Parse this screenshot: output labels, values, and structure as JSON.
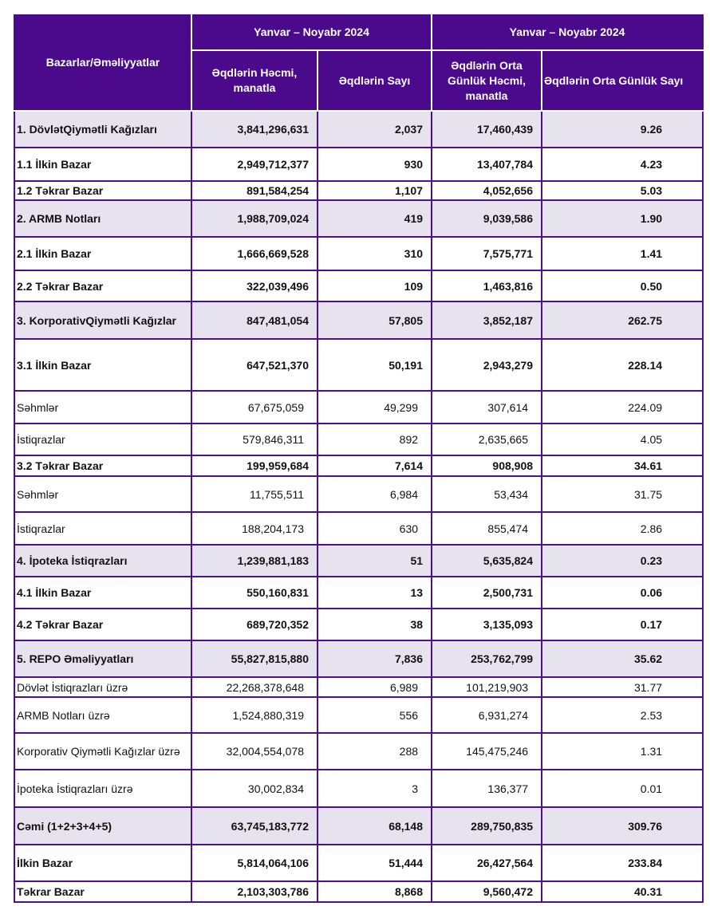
{
  "header": {
    "row_label": "Bazarlar/Əməliyyatlar",
    "period_1": "Yanvar – Noyabr 2024",
    "period_2": "Yanvar – Noyabr 2024",
    "columns": [
      "Əqdlərin Həcmi, manatla",
      "Əqdlərin Sayı",
      "Əqdlərin Orta Günlük Həcmi, manatla",
      "Əqdlərin Orta Günlük Sayı"
    ]
  },
  "colors": {
    "header_bg": "#4b0a8c",
    "shade_bg": "#e6e2ee",
    "border": "#4b108c"
  },
  "rows": [
    {
      "label": "1. DövlətQiymətli Kağızları",
      "volume": "3,841,296,631",
      "count": "2,037",
      "avg_volume": "17,460,439",
      "avg_count": "9.26",
      "bold": true,
      "shaded": true
    },
    {
      "label": "1.1 İlkin Bazar",
      "volume": "2,949,712,377",
      "count": "930",
      "avg_volume": "13,407,784",
      "avg_count": "4.23",
      "bold": true,
      "shaded": false
    },
    {
      "label": "1.2 Təkrar Bazar",
      "volume": "891,584,254",
      "count": "1,107",
      "avg_volume": "4,052,656",
      "avg_count": "5.03",
      "bold": true,
      "shaded": false
    },
    {
      "label": "2. ARMB Notları",
      "volume": "1,988,709,024",
      "count": "419",
      "avg_volume": "9,039,586",
      "avg_count": "1.90",
      "bold": true,
      "shaded": true
    },
    {
      "label": "2.1 İlkin Bazar",
      "volume": "1,666,669,528",
      "count": "310",
      "avg_volume": "7,575,771",
      "avg_count": "1.41",
      "bold": true,
      "shaded": false
    },
    {
      "label": "2.2 Təkrar Bazar",
      "volume": "322,039,496",
      "count": "109",
      "avg_volume": "1,463,816",
      "avg_count": "0.50",
      "bold": true,
      "shaded": false
    },
    {
      "label": "3. KorporativQiymətli Kağızlar",
      "volume": "847,481,054",
      "count": "57,805",
      "avg_volume": "3,852,187",
      "avg_count": "262.75",
      "bold": true,
      "shaded": true
    },
    {
      "label": "3.1 İlkin Bazar",
      "volume": "647,521,370",
      "count": "50,191",
      "avg_volume": "2,943,279",
      "avg_count": "228.14",
      "bold": true,
      "shaded": false
    },
    {
      "label": "Səhmlər",
      "volume": "67,675,059",
      "count": "49,299",
      "avg_volume": "307,614",
      "avg_count": "224.09",
      "bold": false,
      "shaded": false
    },
    {
      "label": "İstiqrazlar",
      "volume": "579,846,311",
      "count": "892",
      "avg_volume": "2,635,665",
      "avg_count": "4.05",
      "bold": false,
      "shaded": false
    },
    {
      "label": "3.2 Təkrar Bazar",
      "volume": "199,959,684",
      "count": "7,614",
      "avg_volume": "908,908",
      "avg_count": "34.61",
      "bold": true,
      "shaded": false
    },
    {
      "label": "Səhmlər",
      "volume": "11,755,511",
      "count": "6,984",
      "avg_volume": "53,434",
      "avg_count": "31.75",
      "bold": false,
      "shaded": false
    },
    {
      "label": "İstiqrazlar",
      "volume": "188,204,173",
      "count": "630",
      "avg_volume": "855,474",
      "avg_count": "2.86",
      "bold": false,
      "shaded": false
    },
    {
      "label": "4. İpoteka İstiqrazları",
      "volume": "1,239,881,183",
      "count": "51",
      "avg_volume": "5,635,824",
      "avg_count": "0.23",
      "bold": true,
      "shaded": true
    },
    {
      "label": "4.1 İlkin Bazar",
      "volume": "550,160,831",
      "count": "13",
      "avg_volume": "2,500,731",
      "avg_count": "0.06",
      "bold": true,
      "shaded": false
    },
    {
      "label": "4.2 Təkrar Bazar",
      "volume": "689,720,352",
      "count": "38",
      "avg_volume": "3,135,093",
      "avg_count": "0.17",
      "bold": true,
      "shaded": false
    },
    {
      "label": "5. REPO Əməliyyatları",
      "volume": "55,827,815,880",
      "count": "7,836",
      "avg_volume": "253,762,799",
      "avg_count": "35.62",
      "bold": true,
      "shaded": true
    },
    {
      "label": "Dövlət İstiqrazları üzrə",
      "volume": "22,268,378,648",
      "count": "6,989",
      "avg_volume": "101,219,903",
      "avg_count": "31.77",
      "bold": false,
      "shaded": false
    },
    {
      "label": "ARMB Notları üzrə",
      "volume": "1,524,880,319",
      "count": "556",
      "avg_volume": "6,931,274",
      "avg_count": "2.53",
      "bold": false,
      "shaded": false
    },
    {
      "label": "Korporativ Qiymətli Kağızlar üzrə",
      "volume": "32,004,554,078",
      "count": "288",
      "avg_volume": "145,475,246",
      "avg_count": "1.31",
      "bold": false,
      "shaded": false
    },
    {
      "label": "İpoteka İstiqrazları üzrə",
      "volume": "30,002,834",
      "count": "3",
      "avg_volume": "136,377",
      "avg_count": "0.01",
      "bold": false,
      "shaded": false
    },
    {
      "label": "Cəmi (1+2+3+4+5)",
      "volume": "63,745,183,772",
      "count": "68,148",
      "avg_volume": "289,750,835",
      "avg_count": "309.76",
      "bold": true,
      "shaded": true
    },
    {
      "label": "İlkin Bazar",
      "volume": "5,814,064,106",
      "count": "51,444",
      "avg_volume": "26,427,564",
      "avg_count": "233.84",
      "bold": true,
      "shaded": false
    },
    {
      "label": "Təkrar Bazar",
      "volume": "2,103,303,786",
      "count": "8,868",
      "avg_volume": "9,560,472",
      "avg_count": "40.31",
      "bold": true,
      "shaded": false
    }
  ]
}
